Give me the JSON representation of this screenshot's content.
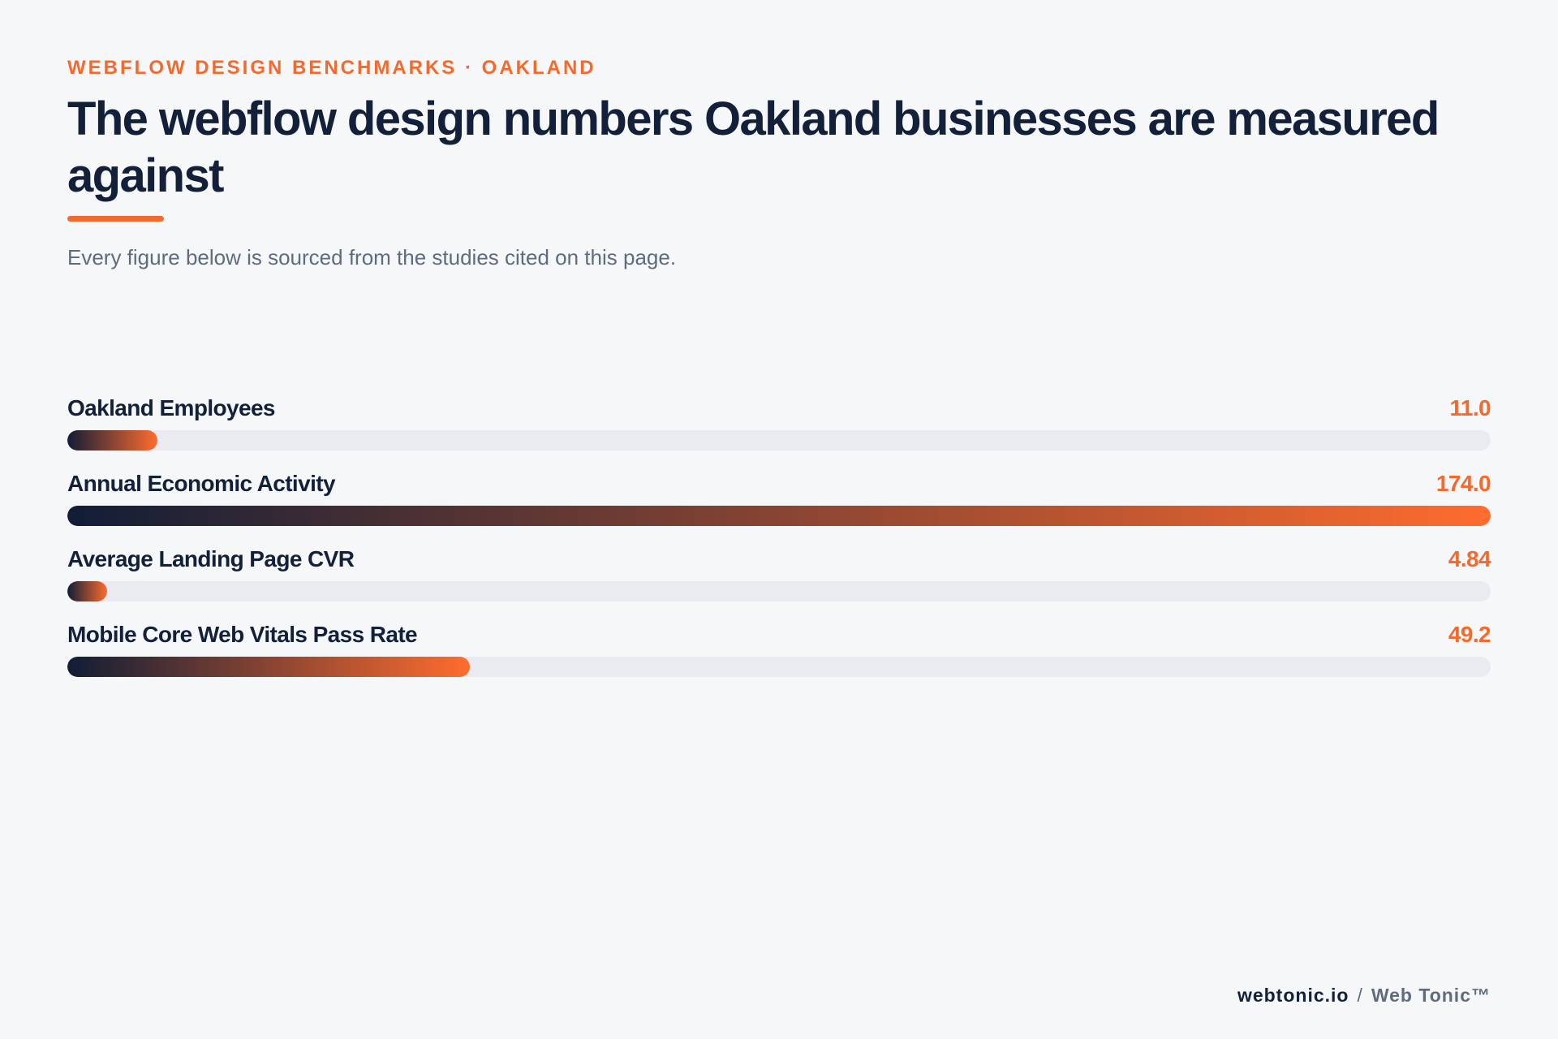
{
  "header": {
    "eyebrow": "WEBFLOW DESIGN BENCHMARKS · OAKLAND",
    "title": "The webflow design numbers Oakland businesses are measured against",
    "subtitle": "Every figure below is sourced from the studies cited on this page."
  },
  "colors": {
    "accent": "#f26a2e",
    "navy": "#13203a",
    "track": "#e9ebf1",
    "bar_gradient_start": "#111d36",
    "bar_gradient_end": "#ff6c2e"
  },
  "chart_data": {
    "type": "bar",
    "orientation": "horizontal",
    "categories": [
      "Oakland Employees",
      "Annual Economic Activity",
      "Average Landing Page CVR",
      "Mobile Core Web Vitals Pass Rate"
    ],
    "values": [
      11.0,
      174.0,
      4.84,
      49.2
    ],
    "value_labels": [
      "11.0",
      "174.0",
      "4.84",
      "49.2"
    ],
    "xlim": [
      0,
      174.0
    ],
    "grid": false
  },
  "footer": {
    "site": "webtonic.io",
    "separator": "/",
    "brand": "Web Tonic™"
  }
}
